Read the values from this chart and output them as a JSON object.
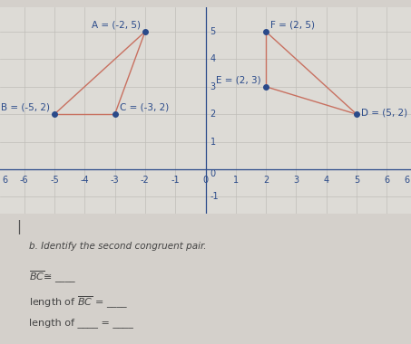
{
  "background_color": "#d4d0cb",
  "plot_bg_color": "#dddbd6",
  "points_left": {
    "A": [
      -2,
      5
    ],
    "B": [
      -5,
      2
    ],
    "C": [
      -3,
      2
    ]
  },
  "points_right": {
    "F": [
      2,
      5
    ],
    "E": [
      2,
      3
    ],
    "D": [
      5,
      2
    ]
  },
  "triangle_color": "#c87060",
  "point_color": "#2a4a8a",
  "label_color": "#2a4a8a",
  "axis_color": "#2a4a8a",
  "tick_color": "#2a4a8a",
  "grid_color": "#bfbdb8",
  "xlim": [
    -6.8,
    6.8
  ],
  "ylim": [
    -1.6,
    5.9
  ],
  "xticks": [
    -6,
    -5,
    -4,
    -3,
    -2,
    -1,
    0,
    1,
    2,
    3,
    4,
    5,
    6
  ],
  "yticks": [
    -1,
    0,
    1,
    2,
    3,
    4,
    5
  ],
  "font_size_labels": 7.5,
  "font_size_axis": 7,
  "font_size_text": 8,
  "marker_size": 4,
  "line_width": 1.0,
  "label_A": "A = (-2, 5)",
  "label_B": "B = (-5, 2)",
  "label_C": "C = (-3, 2)",
  "label_F": "F = (2, 5)",
  "label_E": "E = (2, 3)",
  "label_D": "D = (5, 2)",
  "text_cursor": "|",
  "text_identify": "b. Identify the second congruent pair.",
  "text_line1": "BC≡ ____",
  "text_line2_pre": "length of ",
  "text_line2_post": " = ____",
  "text_line3": "length of ____ = ____"
}
